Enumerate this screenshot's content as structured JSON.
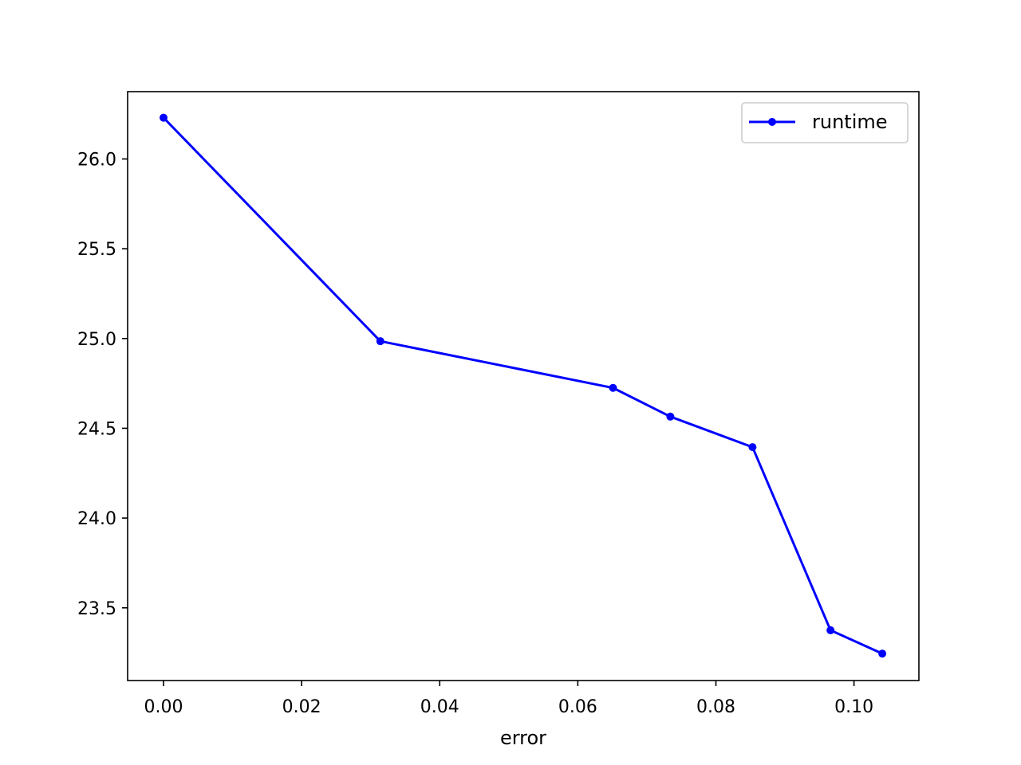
{
  "chart_data": {
    "type": "line",
    "xlabel": "error",
    "ylabel": "",
    "xlim": [
      -0.0052,
      0.1094
    ],
    "ylim": [
      23.095,
      26.375
    ],
    "xticks": [
      0.0,
      0.02,
      0.04,
      0.06,
      0.08,
      0.1
    ],
    "xtick_labels": [
      "0.00",
      "0.02",
      "0.04",
      "0.06",
      "0.08",
      "0.10"
    ],
    "yticks": [
      23.5,
      24.0,
      24.5,
      25.0,
      25.5,
      26.0
    ],
    "ytick_labels": [
      "23.5",
      "24.0",
      "24.5",
      "25.0",
      "25.5",
      "26.0"
    ],
    "grid": false,
    "legend": "top-right",
    "series": [
      {
        "name": "runtime",
        "color": "#0000ff",
        "marker": "circle",
        "x": [
          0.0,
          0.0314,
          0.0651,
          0.0734,
          0.0853,
          0.0966,
          0.1041
        ],
        "y": [
          26.23,
          24.985,
          24.725,
          24.565,
          24.395,
          23.375,
          23.245
        ]
      }
    ]
  }
}
